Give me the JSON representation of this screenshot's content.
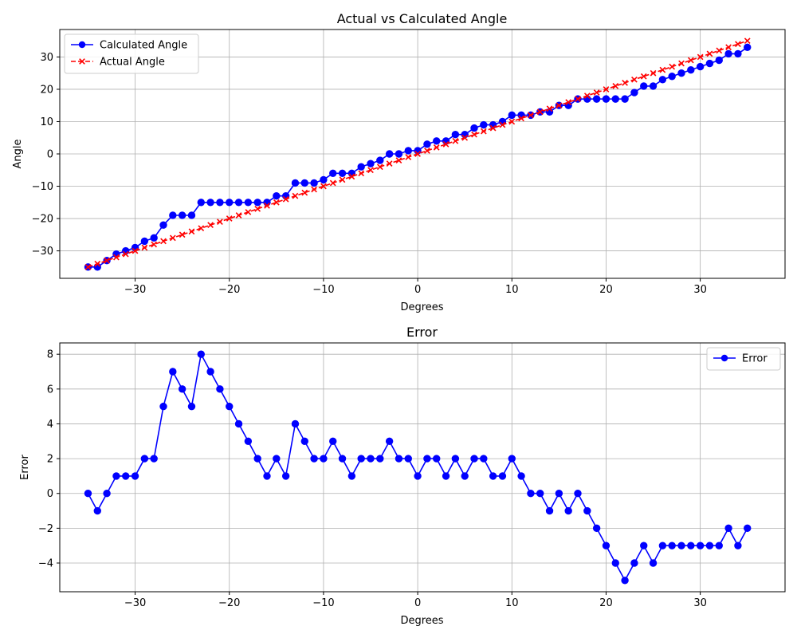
{
  "chart_data": [
    {
      "type": "line",
      "title": "Actual vs Calculated Angle",
      "xlabel": "Degrees",
      "ylabel": "Angle",
      "xlim": [
        -38,
        39
      ],
      "ylim": [
        -38.5,
        38.5
      ],
      "xticks": [
        -30,
        -20,
        -10,
        0,
        10,
        20,
        30
      ],
      "yticks": [
        -30,
        -20,
        -10,
        0,
        10,
        20,
        30
      ],
      "grid": true,
      "legend": "top-left",
      "x": [
        -35,
        -34,
        -33,
        -32,
        -31,
        -30,
        -29,
        -28,
        -27,
        -26,
        -25,
        -24,
        -23,
        -22,
        -21,
        -20,
        -19,
        -18,
        -17,
        -16,
        -15,
        -14,
        -13,
        -12,
        -11,
        -10,
        -9,
        -8,
        -7,
        -6,
        -5,
        -4,
        -3,
        -2,
        -1,
        0,
        1,
        2,
        3,
        4,
        5,
        6,
        7,
        8,
        9,
        10,
        11,
        12,
        13,
        14,
        15,
        16,
        17,
        18,
        19,
        20,
        21,
        22,
        23,
        24,
        25,
        26,
        27,
        28,
        29,
        30,
        31,
        32,
        33,
        34,
        35
      ],
      "series": [
        {
          "name": "Calculated Angle",
          "color": "#0000ff",
          "style": "solid",
          "marker": "circle",
          "values": [
            -35,
            -35,
            -33,
            -31,
            -30,
            -29,
            -27,
            -26,
            -22,
            -19,
            -19,
            -19,
            -15,
            -15,
            -15,
            -15,
            -15,
            -15,
            -15,
            -15,
            -13,
            -13,
            -9,
            -9,
            -9,
            -8,
            -6,
            -6,
            -6,
            -4,
            -3,
            -2,
            0,
            0,
            1,
            1,
            3,
            4,
            4,
            6,
            6,
            8,
            9,
            9,
            10,
            12,
            12,
            12,
            13,
            13,
            15,
            15,
            17,
            17,
            17,
            17,
            17,
            17,
            19,
            21,
            21,
            23,
            24,
            25,
            26,
            27,
            28,
            29,
            31,
            31,
            33
          ]
        },
        {
          "name": "Actual Angle",
          "color": "#ff0000",
          "style": "dashed",
          "marker": "x",
          "values": [
            -35,
            -34,
            -33,
            -32,
            -31,
            -30,
            -29,
            -28,
            -27,
            -26,
            -25,
            -24,
            -23,
            -22,
            -21,
            -20,
            -19,
            -18,
            -17,
            -16,
            -15,
            -14,
            -13,
            -12,
            -11,
            -10,
            -9,
            -8,
            -7,
            -6,
            -5,
            -4,
            -3,
            -2,
            -1,
            0,
            1,
            2,
            3,
            4,
            5,
            6,
            7,
            8,
            9,
            10,
            11,
            12,
            13,
            14,
            15,
            16,
            17,
            18,
            19,
            20,
            21,
            22,
            23,
            24,
            25,
            26,
            27,
            28,
            29,
            30,
            31,
            32,
            33,
            34,
            35
          ]
        }
      ]
    },
    {
      "type": "line",
      "title": "Error",
      "xlabel": "Degrees",
      "ylabel": "Error",
      "xlim": [
        -38,
        39
      ],
      "ylim": [
        -5.65,
        8.65
      ],
      "xticks": [
        -30,
        -20,
        -10,
        0,
        10,
        20,
        30
      ],
      "yticks": [
        -4,
        -2,
        0,
        2,
        4,
        6,
        8
      ],
      "grid": true,
      "legend": "top-right",
      "x": [
        -35,
        -34,
        -33,
        -32,
        -31,
        -30,
        -29,
        -28,
        -27,
        -26,
        -25,
        -24,
        -23,
        -22,
        -21,
        -20,
        -19,
        -18,
        -17,
        -16,
        -15,
        -14,
        -13,
        -12,
        -11,
        -10,
        -9,
        -8,
        -7,
        -6,
        -5,
        -4,
        -3,
        -2,
        -1,
        0,
        1,
        2,
        3,
        4,
        5,
        6,
        7,
        8,
        9,
        10,
        11,
        12,
        13,
        14,
        15,
        16,
        17,
        18,
        19,
        20,
        21,
        22,
        23,
        24,
        25,
        26,
        27,
        28,
        29,
        30,
        31,
        32,
        33,
        34,
        35
      ],
      "series": [
        {
          "name": "Error",
          "color": "#0000ff",
          "style": "solid",
          "marker": "circle",
          "values": [
            0,
            -1,
            0,
            1,
            1,
            1,
            2,
            2,
            5,
            7,
            6,
            5,
            8,
            7,
            6,
            5,
            4,
            3,
            2,
            1,
            2,
            1,
            4,
            3,
            2,
            2,
            3,
            2,
            1,
            2,
            2,
            2,
            3,
            2,
            2,
            1,
            2,
            2,
            1,
            2,
            1,
            2,
            2,
            1,
            1,
            2,
            1,
            0,
            0,
            -1,
            0,
            -1,
            0,
            -1,
            -2,
            -3,
            -4,
            -5,
            -4,
            -3,
            -4,
            -3,
            -3,
            -3,
            -3,
            -3,
            -3,
            -3,
            -2,
            -3,
            -2
          ]
        }
      ]
    }
  ]
}
